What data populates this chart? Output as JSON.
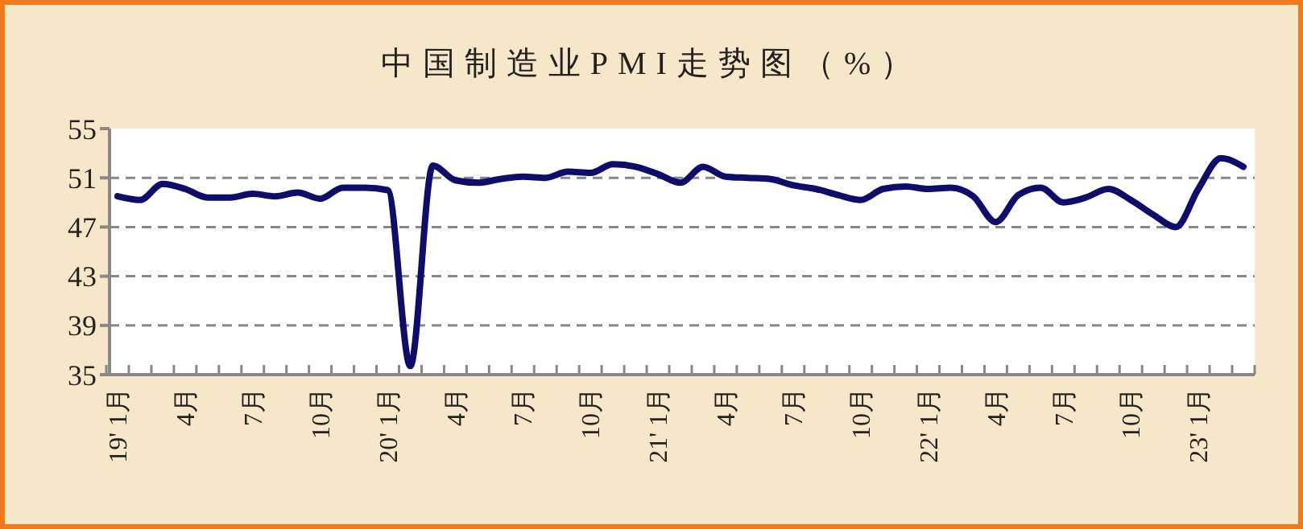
{
  "chart_data": {
    "type": "line",
    "title": "中国制造业PMI走势图（%）",
    "categories": [
      "19' 1月",
      null,
      null,
      "4月",
      null,
      null,
      "7月",
      null,
      null,
      "10月",
      null,
      null,
      "20' 1月",
      null,
      null,
      "4月",
      null,
      null,
      "7月",
      null,
      null,
      "10月",
      null,
      null,
      "21' 1月",
      null,
      null,
      "4月",
      null,
      null,
      "7月",
      null,
      null,
      "10月",
      null,
      null,
      "22' 1月",
      null,
      null,
      "4月",
      null,
      null,
      "7月",
      null,
      null,
      "10月",
      null,
      null,
      "23' 1月",
      null,
      null
    ],
    "series": [
      {
        "color": "#0d0d6b",
        "values": [
          49.5,
          49.2,
          50.5,
          50.1,
          49.4,
          49.4,
          49.7,
          49.5,
          49.8,
          49.3,
          50.2,
          50.2,
          50.0,
          35.7,
          52.0,
          50.8,
          50.6,
          50.9,
          51.1,
          51.0,
          51.5,
          51.4,
          52.1,
          51.9,
          51.3,
          50.6,
          51.9,
          51.1,
          51.0,
          50.9,
          50.4,
          50.1,
          49.6,
          49.2,
          50.1,
          50.3,
          50.1,
          50.2,
          49.5,
          47.4,
          49.6,
          50.2,
          49.0,
          49.4,
          50.1,
          49.2,
          48.0,
          47.0,
          50.1,
          52.6,
          51.9
        ]
      }
    ],
    "ylim": [
      35,
      55
    ],
    "yticks": [
      35,
      39,
      43,
      47,
      51,
      55
    ],
    "grid": "y",
    "marker": "none",
    "line_style": "solid"
  }
}
